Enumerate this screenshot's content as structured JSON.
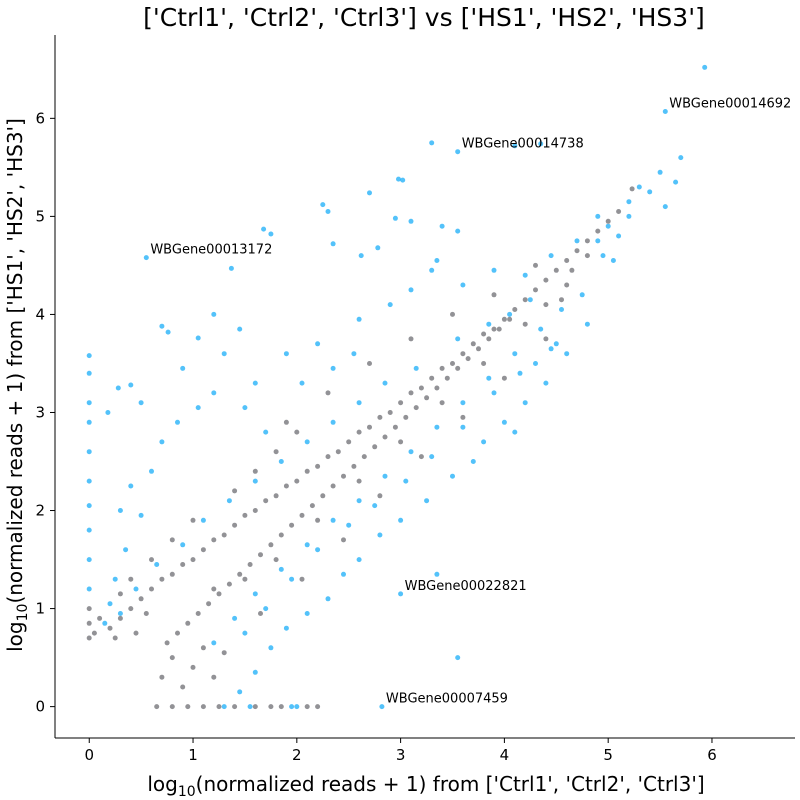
{
  "chart_data": {
    "type": "scatter",
    "title": "['Ctrl1', 'Ctrl2', 'Ctrl3'] vs ['HS1', 'HS2', 'HS3']",
    "xlabel": {
      "prefix": "log",
      "sub": "10",
      "suffix": "(normalized reads + 1) from ['Ctrl1', 'Ctrl2', 'Ctrl3']"
    },
    "ylabel": {
      "prefix": "log",
      "sub": "10",
      "suffix": "(normalized reads + 1) from ['HS1', 'HS2', 'HS3']"
    },
    "xlim": [
      -0.33,
      6.8
    ],
    "ylim": [
      -0.32,
      6.85
    ],
    "xticks": [
      0,
      1,
      2,
      3,
      4,
      5,
      6
    ],
    "yticks": [
      0,
      1,
      2,
      3,
      4,
      5,
      6
    ],
    "grid": false,
    "colors": {
      "not_significant": "#6e6e73",
      "significant": "#19aef8"
    },
    "series": [
      {
        "color_key": "significant",
        "points": [
          [
            5.93,
            6.52
          ],
          [
            5.55,
            6.07
          ],
          [
            3.3,
            5.75
          ],
          [
            3.55,
            5.66
          ],
          [
            4.1,
            5.72
          ],
          [
            4.35,
            5.74
          ],
          [
            2.7,
            5.24
          ],
          [
            2.98,
            5.38
          ],
          [
            3.02,
            5.37
          ],
          [
            2.25,
            5.12
          ],
          [
            2.3,
            5.05
          ],
          [
            3.1,
            4.95
          ],
          [
            2.95,
            4.98
          ],
          [
            3.4,
            4.9
          ],
          [
            3.55,
            4.85
          ],
          [
            1.68,
            4.87
          ],
          [
            1.75,
            4.82
          ],
          [
            2.35,
            4.72
          ],
          [
            2.62,
            4.6
          ],
          [
            3.35,
            4.55
          ],
          [
            0.55,
            4.58
          ],
          [
            1.37,
            4.47
          ],
          [
            2.78,
            4.68
          ],
          [
            1.2,
            4.0
          ],
          [
            0.7,
            3.88
          ],
          [
            0.76,
            3.82
          ],
          [
            1.05,
            3.76
          ],
          [
            1.45,
            3.85
          ],
          [
            0.0,
            3.58
          ],
          [
            0.0,
            3.4
          ],
          [
            0.0,
            3.1
          ],
          [
            0.0,
            2.9
          ],
          [
            0.0,
            2.6
          ],
          [
            0.0,
            2.3
          ],
          [
            0.0,
            2.05
          ],
          [
            0.0,
            1.8
          ],
          [
            0.0,
            1.5
          ],
          [
            0.0,
            1.2
          ],
          [
            0.4,
            3.28
          ],
          [
            0.28,
            3.25
          ],
          [
            0.18,
            3.0
          ],
          [
            0.5,
            3.1
          ],
          [
            0.9,
            3.45
          ],
          [
            1.3,
            3.6
          ],
          [
            1.6,
            3.3
          ],
          [
            1.9,
            3.6
          ],
          [
            2.2,
            3.7
          ],
          [
            2.6,
            3.95
          ],
          [
            2.9,
            4.1
          ],
          [
            3.1,
            4.25
          ],
          [
            3.3,
            4.45
          ],
          [
            3.6,
            4.3
          ],
          [
            3.9,
            4.45
          ],
          [
            4.2,
            4.4
          ],
          [
            4.45,
            4.6
          ],
          [
            4.7,
            4.75
          ],
          [
            4.9,
            5.0
          ],
          [
            5.2,
            5.0
          ],
          [
            4.5,
            3.7
          ],
          [
            4.8,
            3.9
          ],
          [
            4.4,
            3.3
          ],
          [
            4.2,
            3.1
          ],
          [
            4.0,
            2.9
          ],
          [
            4.6,
            3.6
          ],
          [
            4.45,
            3.65
          ],
          [
            3.8,
            2.7
          ],
          [
            3.7,
            2.5
          ],
          [
            3.5,
            2.35
          ],
          [
            3.25,
            2.1
          ],
          [
            3.0,
            1.9
          ],
          [
            2.8,
            1.75
          ],
          [
            2.6,
            1.5
          ],
          [
            2.45,
            1.35
          ],
          [
            2.3,
            1.1
          ],
          [
            2.1,
            0.95
          ],
          [
            1.9,
            0.8
          ],
          [
            1.75,
            0.6
          ],
          [
            1.6,
            0.35
          ],
          [
            1.45,
            0.15
          ],
          [
            1.95,
            0.0
          ],
          [
            2.0,
            0.0
          ],
          [
            1.55,
            0.0
          ],
          [
            1.3,
            0.0
          ],
          [
            3.55,
            0.5
          ],
          [
            3.35,
            1.35
          ],
          [
            3.0,
            1.15
          ],
          [
            2.82,
            0.0
          ],
          [
            4.1,
            2.8
          ],
          [
            4.95,
            4.6
          ],
          [
            5.05,
            4.55
          ],
          [
            5.1,
            4.8
          ],
          [
            4.3,
            3.5
          ],
          [
            4.15,
            3.4
          ],
          [
            3.9,
            3.2
          ],
          [
            0.6,
            2.4
          ],
          [
            0.7,
            2.7
          ],
          [
            0.85,
            2.9
          ],
          [
            1.05,
            3.05
          ],
          [
            1.2,
            3.2
          ],
          [
            1.5,
            3.05
          ],
          [
            1.7,
            2.8
          ],
          [
            2.05,
            3.3
          ],
          [
            2.35,
            3.45
          ],
          [
            2.55,
            3.6
          ],
          [
            0.3,
            2.0
          ],
          [
            0.4,
            2.25
          ],
          [
            0.5,
            1.95
          ],
          [
            0.35,
            1.6
          ],
          [
            0.25,
            1.3
          ],
          [
            0.2,
            1.05
          ],
          [
            0.15,
            0.85
          ],
          [
            3.6,
            2.85
          ],
          [
            3.3,
            2.55
          ],
          [
            3.05,
            2.3
          ],
          [
            2.75,
            2.05
          ],
          [
            2.5,
            1.85
          ],
          [
            2.2,
            1.6
          ],
          [
            1.95,
            1.3
          ],
          [
            1.7,
            1.0
          ],
          [
            1.5,
            0.75
          ],
          [
            4.25,
            4.15
          ],
          [
            4.05,
            4.0
          ],
          [
            3.85,
            3.9
          ],
          [
            3.55,
            3.75
          ],
          [
            3.15,
            3.45
          ],
          [
            2.85,
            3.3
          ],
          [
            2.6,
            3.1
          ],
          [
            2.35,
            2.9
          ],
          [
            2.1,
            2.7
          ],
          [
            1.85,
            2.5
          ],
          [
            1.6,
            2.3
          ],
          [
            1.35,
            2.1
          ],
          [
            1.1,
            1.9
          ],
          [
            0.9,
            1.65
          ],
          [
            0.65,
            1.45
          ],
          [
            0.45,
            1.2
          ],
          [
            0.3,
            0.95
          ],
          [
            4.75,
            4.2
          ],
          [
            4.55,
            4.05
          ],
          [
            4.35,
            3.85
          ],
          [
            4.1,
            3.6
          ],
          [
            3.85,
            3.35
          ],
          [
            3.6,
            3.1
          ],
          [
            3.35,
            2.85
          ],
          [
            3.1,
            2.6
          ],
          [
            2.85,
            2.35
          ],
          [
            2.6,
            2.1
          ],
          [
            2.35,
            1.9
          ],
          [
            2.1,
            1.65
          ],
          [
            1.85,
            1.4
          ],
          [
            1.6,
            1.15
          ],
          [
            1.4,
            0.9
          ],
          [
            1.2,
            0.65
          ],
          [
            5.3,
            5.3
          ],
          [
            5.4,
            5.25
          ],
          [
            5.5,
            5.45
          ],
          [
            5.55,
            5.1
          ],
          [
            5.65,
            5.35
          ],
          [
            5.7,
            5.6
          ],
          [
            5.2,
            5.15
          ],
          [
            5.0,
            4.9
          ],
          [
            4.9,
            4.75
          ]
        ]
      },
      {
        "color_key": "not_significant",
        "points": [
          [
            0.0,
            0.7
          ],
          [
            0.0,
            0.85
          ],
          [
            0.0,
            1.0
          ],
          [
            0.05,
            0.75
          ],
          [
            0.1,
            0.9
          ],
          [
            0.2,
            0.8
          ],
          [
            0.3,
            0.9
          ],
          [
            0.4,
            1.0
          ],
          [
            0.5,
            1.1
          ],
          [
            0.6,
            1.2
          ],
          [
            0.7,
            1.3
          ],
          [
            0.8,
            1.35
          ],
          [
            0.9,
            1.45
          ],
          [
            1.0,
            1.5
          ],
          [
            1.1,
            1.6
          ],
          [
            1.2,
            1.7
          ],
          [
            1.3,
            1.75
          ],
          [
            1.4,
            1.85
          ],
          [
            1.5,
            1.95
          ],
          [
            1.6,
            2.0
          ],
          [
            1.7,
            2.1
          ],
          [
            1.8,
            2.15
          ],
          [
            1.9,
            2.25
          ],
          [
            2.0,
            2.3
          ],
          [
            2.1,
            2.4
          ],
          [
            2.2,
            2.45
          ],
          [
            2.3,
            2.55
          ],
          [
            2.4,
            2.6
          ],
          [
            2.5,
            2.7
          ],
          [
            2.6,
            2.8
          ],
          [
            2.7,
            2.85
          ],
          [
            2.8,
            2.95
          ],
          [
            2.9,
            3.0
          ],
          [
            3.0,
            3.1
          ],
          [
            3.1,
            3.2
          ],
          [
            3.2,
            3.25
          ],
          [
            3.3,
            3.35
          ],
          [
            3.4,
            3.45
          ],
          [
            3.5,
            3.5
          ],
          [
            3.6,
            3.6
          ],
          [
            3.7,
            3.7
          ],
          [
            3.8,
            3.8
          ],
          [
            3.9,
            3.85
          ],
          [
            4.0,
            3.95
          ],
          [
            4.1,
            4.05
          ],
          [
            4.2,
            4.15
          ],
          [
            4.3,
            4.25
          ],
          [
            4.4,
            4.35
          ],
          [
            4.5,
            4.45
          ],
          [
            4.6,
            4.55
          ],
          [
            4.7,
            4.65
          ],
          [
            4.8,
            4.75
          ],
          [
            4.9,
            4.85
          ],
          [
            5.0,
            4.95
          ],
          [
            5.1,
            5.05
          ],
          [
            5.23,
            5.28
          ],
          [
            4.4,
            4.1
          ],
          [
            4.6,
            4.3
          ],
          [
            4.8,
            4.6
          ],
          [
            4.55,
            4.15
          ],
          [
            4.65,
            4.45
          ],
          [
            0.65,
            0.0
          ],
          [
            0.8,
            0.0
          ],
          [
            0.95,
            0.0
          ],
          [
            1.1,
            0.0
          ],
          [
            1.25,
            0.0
          ],
          [
            1.4,
            0.0
          ],
          [
            1.6,
            0.0
          ],
          [
            1.75,
            0.0
          ],
          [
            1.85,
            0.0
          ],
          [
            2.1,
            0.0
          ],
          [
            2.2,
            0.0
          ],
          [
            0.7,
            0.3
          ],
          [
            0.8,
            0.5
          ],
          [
            0.9,
            0.2
          ],
          [
            1.0,
            0.4
          ],
          [
            1.1,
            0.6
          ],
          [
            1.2,
            0.3
          ],
          [
            1.3,
            0.55
          ],
          [
            0.75,
            0.65
          ],
          [
            0.85,
            0.75
          ],
          [
            0.95,
            0.85
          ],
          [
            1.05,
            0.95
          ],
          [
            1.15,
            1.05
          ],
          [
            1.25,
            1.15
          ],
          [
            1.35,
            1.25
          ],
          [
            1.45,
            1.35
          ],
          [
            1.55,
            1.45
          ],
          [
            1.65,
            1.55
          ],
          [
            1.75,
            1.65
          ],
          [
            1.85,
            1.75
          ],
          [
            1.95,
            1.85
          ],
          [
            2.05,
            1.95
          ],
          [
            2.15,
            2.05
          ],
          [
            2.25,
            2.15
          ],
          [
            2.35,
            2.25
          ],
          [
            2.45,
            2.35
          ],
          [
            2.55,
            2.45
          ],
          [
            2.65,
            2.55
          ],
          [
            2.75,
            2.65
          ],
          [
            2.85,
            2.75
          ],
          [
            2.95,
            2.85
          ],
          [
            3.05,
            2.95
          ],
          [
            3.15,
            3.05
          ],
          [
            3.25,
            3.15
          ],
          [
            3.35,
            3.25
          ],
          [
            3.45,
            3.35
          ],
          [
            3.55,
            3.45
          ],
          [
            3.65,
            3.55
          ],
          [
            3.75,
            3.65
          ],
          [
            3.85,
            3.75
          ],
          [
            3.95,
            3.85
          ],
          [
            4.05,
            3.95
          ],
          [
            1.4,
            2.2
          ],
          [
            1.6,
            2.4
          ],
          [
            1.8,
            2.6
          ],
          [
            2.0,
            2.8
          ],
          [
            1.0,
            1.9
          ],
          [
            0.8,
            1.7
          ],
          [
            0.6,
            1.5
          ],
          [
            0.4,
            1.3
          ],
          [
            0.3,
            1.15
          ],
          [
            1.2,
            1.2
          ],
          [
            1.5,
            1.3
          ],
          [
            1.8,
            1.5
          ],
          [
            2.2,
            1.9
          ],
          [
            2.6,
            2.3
          ],
          [
            3.0,
            2.7
          ],
          [
            3.4,
            3.1
          ],
          [
            3.8,
            3.5
          ],
          [
            4.2,
            3.9
          ],
          [
            0.55,
            0.95
          ],
          [
            0.45,
            0.75
          ],
          [
            0.25,
            0.7
          ],
          [
            1.9,
            2.9
          ],
          [
            2.3,
            3.2
          ],
          [
            2.7,
            3.5
          ],
          [
            3.1,
            3.75
          ],
          [
            3.5,
            4.0
          ],
          [
            3.9,
            4.2
          ],
          [
            4.3,
            4.5
          ],
          [
            2.8,
            2.15
          ],
          [
            3.2,
            2.55
          ],
          [
            3.6,
            2.95
          ],
          [
            4.0,
            3.35
          ],
          [
            4.4,
            3.75
          ],
          [
            2.45,
            1.7
          ],
          [
            2.05,
            1.3
          ],
          [
            1.65,
            0.95
          ]
        ]
      }
    ],
    "annotations": [
      {
        "label": "WBGene00014692",
        "x": 5.55,
        "y": 6.07
      },
      {
        "label": "WBGene00014738",
        "x": 3.55,
        "y": 5.66
      },
      {
        "label": "WBGene00013172",
        "x": 0.55,
        "y": 4.58
      },
      {
        "label": "WBGene00022821",
        "x": 3.0,
        "y": 1.15
      },
      {
        "label": "WBGene00007459",
        "x": 2.82,
        "y": 0.0
      }
    ]
  }
}
